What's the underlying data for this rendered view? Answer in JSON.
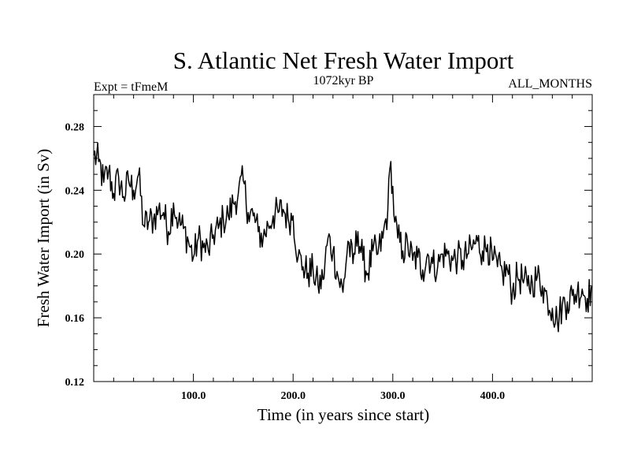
{
  "chart_data": {
    "type": "line",
    "title": "S. Atlantic Net Fresh Water Import",
    "subtitle_left": "Expt = tFmeM",
    "subtitle_center": "1072kyr BP",
    "subtitle_right": "ALL_MONTHS",
    "xlabel": "Time (in years since start)",
    "ylabel": "Fresh Water Import (in Sv)",
    "xlim": [
      0,
      500
    ],
    "ylim": [
      0.12,
      0.3
    ],
    "x_ticks": [
      100,
      200,
      300,
      400
    ],
    "x_tick_labels": [
      "100.0",
      "200.0",
      "300.0",
      "400.0"
    ],
    "y_ticks": [
      0.12,
      0.16,
      0.2,
      0.24,
      0.28
    ],
    "y_tick_labels": [
      "0.12",
      "0.16",
      "0.20",
      "0.24",
      "0.28"
    ],
    "grid": false,
    "series": [
      {
        "name": "Fresh Water Import",
        "color": "#000000",
        "x": [
          0,
          5,
          10,
          15,
          20,
          25,
          30,
          35,
          40,
          45,
          50,
          55,
          60,
          65,
          70,
          75,
          80,
          85,
          90,
          95,
          100,
          105,
          110,
          115,
          120,
          125,
          130,
          135,
          140,
          145,
          150,
          155,
          160,
          165,
          170,
          175,
          180,
          185,
          190,
          195,
          200,
          205,
          210,
          215,
          220,
          225,
          230,
          235,
          240,
          245,
          250,
          255,
          260,
          265,
          270,
          275,
          280,
          285,
          290,
          295,
          298,
          302,
          305,
          310,
          315,
          320,
          325,
          330,
          335,
          340,
          345,
          350,
          355,
          360,
          365,
          370,
          375,
          380,
          385,
          390,
          395,
          400,
          405,
          410,
          415,
          420,
          425,
          430,
          435,
          440,
          445,
          450,
          455,
          460,
          465,
          470,
          475,
          480,
          485,
          490,
          495,
          500
        ],
        "values": [
          0.262,
          0.258,
          0.245,
          0.252,
          0.238,
          0.248,
          0.236,
          0.246,
          0.24,
          0.25,
          0.218,
          0.22,
          0.222,
          0.228,
          0.226,
          0.214,
          0.232,
          0.22,
          0.216,
          0.208,
          0.198,
          0.21,
          0.204,
          0.202,
          0.212,
          0.216,
          0.222,
          0.224,
          0.232,
          0.238,
          0.246,
          0.226,
          0.224,
          0.214,
          0.21,
          0.218,
          0.224,
          0.226,
          0.228,
          0.222,
          0.224,
          0.198,
          0.192,
          0.188,
          0.19,
          0.18,
          0.184,
          0.21,
          0.202,
          0.186,
          0.176,
          0.208,
          0.194,
          0.214,
          0.196,
          0.188,
          0.202,
          0.2,
          0.21,
          0.228,
          0.258,
          0.22,
          0.21,
          0.202,
          0.206,
          0.196,
          0.198,
          0.19,
          0.2,
          0.194,
          0.192,
          0.2,
          0.2,
          0.196,
          0.198,
          0.196,
          0.2,
          0.204,
          0.208,
          0.202,
          0.206,
          0.196,
          0.192,
          0.188,
          0.19,
          0.176,
          0.186,
          0.184,
          0.18,
          0.182,
          0.186,
          0.18,
          0.172,
          0.166,
          0.158,
          0.168,
          0.17,
          0.174,
          0.176,
          0.178,
          0.172,
          0.18
        ]
      }
    ]
  }
}
